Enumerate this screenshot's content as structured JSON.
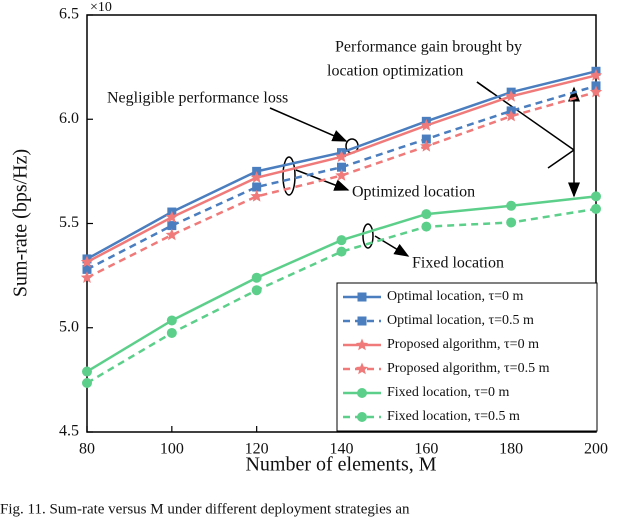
{
  "chart_data": {
    "type": "line",
    "exponent_label": "×10",
    "x_label": "Number of elements, M",
    "y_label": "Sum-rate (bps/Hz)",
    "x": [
      80,
      100,
      120,
      140,
      160,
      180,
      200
    ],
    "xlim": [
      80,
      200
    ],
    "xticks": [
      80,
      100,
      120,
      140,
      160,
      180,
      200
    ],
    "ylim": [
      4.5,
      6.5
    ],
    "yticks": [
      {
        "value": 4.5,
        "label": "4.5"
      },
      {
        "value": 5,
        "label": "5.0"
      },
      {
        "value": 5.5,
        "label": "5.5"
      },
      {
        "value": 6,
        "label": "6.0"
      },
      {
        "value": 6.5,
        "label": "6.5"
      }
    ],
    "legend": "lower right",
    "series": [
      {
        "name": "Optimal location, τ=0 m",
        "color": "#4a7ebf",
        "marker": "square",
        "dashed": false,
        "values": [
          5.33,
          5.555,
          5.75,
          5.84,
          5.99,
          6.13,
          6.23
        ]
      },
      {
        "name": "Optimal location, τ=0.5 m",
        "color": "#4a7ebf",
        "marker": "square",
        "dashed": true,
        "values": [
          5.28,
          5.49,
          5.675,
          5.77,
          5.905,
          6.04,
          6.16
        ]
      },
      {
        "name": "Proposed algorithm, τ=0 m",
        "color": "#f07a7a",
        "marker": "star",
        "dashed": false,
        "values": [
          5.315,
          5.53,
          5.72,
          5.82,
          5.97,
          6.11,
          6.21
        ]
      },
      {
        "name": "Proposed algorithm, τ=0.5 m",
        "color": "#f07a7a",
        "marker": "star",
        "dashed": true,
        "values": [
          5.24,
          5.445,
          5.63,
          5.73,
          5.87,
          6.015,
          6.13
        ]
      },
      {
        "name": "Fixed location, τ=0 m",
        "color": "#5ccf8a",
        "marker": "circle",
        "dashed": false,
        "values": [
          4.79,
          5.035,
          5.24,
          5.42,
          5.545,
          5.585,
          5.63
        ]
      },
      {
        "name": "Fixed location, τ=0.5 m",
        "color": "#5ccf8a",
        "marker": "circle",
        "dashed": true,
        "values": [
          4.735,
          4.975,
          5.18,
          5.365,
          5.485,
          5.505,
          5.57
        ]
      }
    ],
    "annotations": [
      "Performance gain brought by",
      "location optimization",
      "Negligible performance loss",
      "Optimized location",
      "Fixed location"
    ],
    "caption": "Fig. 11.   Sum-rate versus M under different deployment strategies an"
  }
}
